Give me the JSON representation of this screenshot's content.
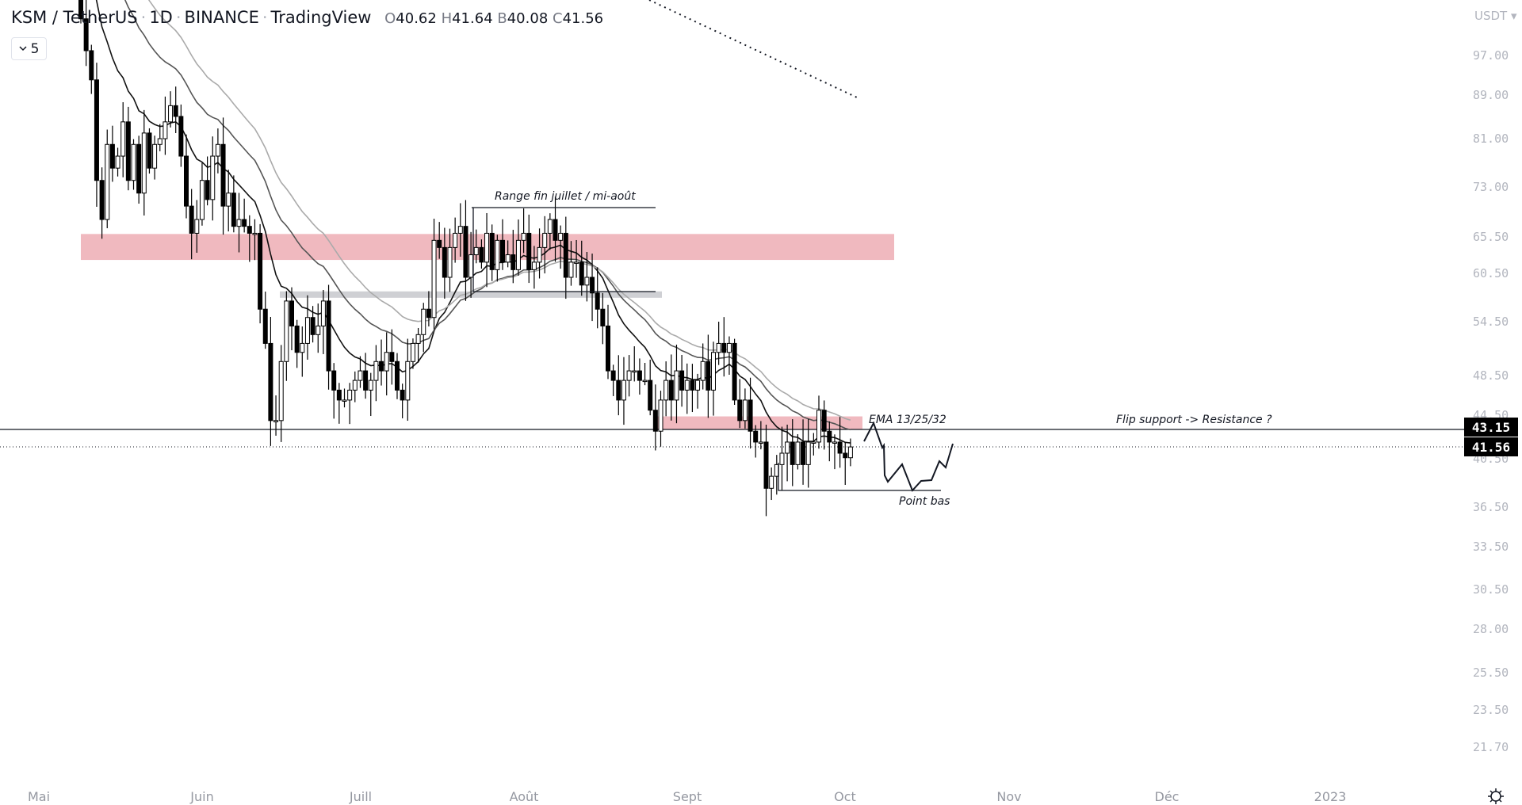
{
  "header": {
    "symbol": "KSM / TetherUS",
    "interval": "1D",
    "exchange": "BINANCE",
    "source": "TradingView",
    "sep": "·",
    "open_key": "O",
    "open": "40.62",
    "high_key": "H",
    "high": "41.64",
    "low_key": "B",
    "low": "40.08",
    "close_key": "C",
    "close": "41.56"
  },
  "indicator_toggle": {
    "label": "5",
    "icon": "chevron-down-icon"
  },
  "price_axis": {
    "currency": "USDT ▾",
    "labels": [
      "97.00",
      "89.00",
      "81.00",
      "73.00",
      "65.50",
      "60.50",
      "54.50",
      "48.50",
      "44.50",
      "40.50",
      "36.50",
      "33.50",
      "30.50",
      "28.00",
      "25.50",
      "23.50",
      "21.70"
    ],
    "tags": [
      {
        "value": "43.15"
      },
      {
        "value": "41.56"
      }
    ]
  },
  "time_axis": {
    "labels": [
      "Mai",
      "Juin",
      "Juill",
      "Août",
      "Sept",
      "Oct",
      "Nov",
      "Déc",
      "2023"
    ]
  },
  "annotations": {
    "range": "Range fin juillet / mi-août",
    "ema": "EMA 13/25/32",
    "flip": "Flip support -> Resistance ?",
    "low_point": "Point bas"
  },
  "colors": {
    "zone": "#f0b9bf",
    "gray_zone": "#cfd0d4",
    "up": "#ffffff",
    "down": "#000000",
    "ema13": "#111111",
    "ema25": "#555555",
    "ema32": "#aaaaaa"
  },
  "chart_data": {
    "type": "candlestick",
    "scale": "log",
    "start_date": "2022-05-09",
    "ema_periods": [
      13,
      25,
      32
    ],
    "ylim": [
      20,
      110
    ],
    "close": [
      105,
      98,
      92,
      74,
      68,
      80,
      76,
      78,
      84,
      74,
      80,
      72,
      82,
      76,
      80,
      81,
      84,
      87,
      85,
      78,
      70,
      66,
      68,
      74,
      71,
      78,
      80,
      70,
      72,
      67,
      68,
      67,
      66,
      66,
      56,
      52,
      44,
      44,
      50,
      57,
      54,
      51,
      52,
      55,
      53,
      54,
      57,
      49,
      47,
      46,
      46,
      47,
      48,
      49,
      47,
      48,
      50,
      49,
      51,
      50,
      47,
      46,
      50,
      52,
      53,
      56,
      55,
      65,
      64,
      60,
      64,
      66,
      67,
      60,
      63,
      64,
      62,
      66,
      61,
      65,
      62,
      63,
      61,
      65,
      66,
      61,
      62,
      64,
      66,
      68,
      65,
      66,
      60,
      62,
      62,
      59,
      60,
      58,
      56,
      54,
      49,
      48,
      46,
      48,
      49,
      49,
      48,
      48,
      45,
      43,
      46,
      48,
      46,
      49,
      47,
      48,
      47,
      48,
      50,
      47,
      51,
      52,
      51,
      52,
      46,
      44,
      46,
      43,
      42,
      42,
      38,
      39,
      40,
      41,
      42,
      40,
      42,
      40,
      42,
      42,
      45,
      43,
      42,
      42,
      41,
      40.6,
      41.56
    ],
    "levels": {
      "resistance_zone": [
        62.3,
        65.9
      ],
      "gray_zone": [
        57.4,
        58.2
      ],
      "flip_zone": [
        43.2,
        44.4
      ],
      "horizontal_line": 43.15,
      "last_price": 41.56
    }
  }
}
